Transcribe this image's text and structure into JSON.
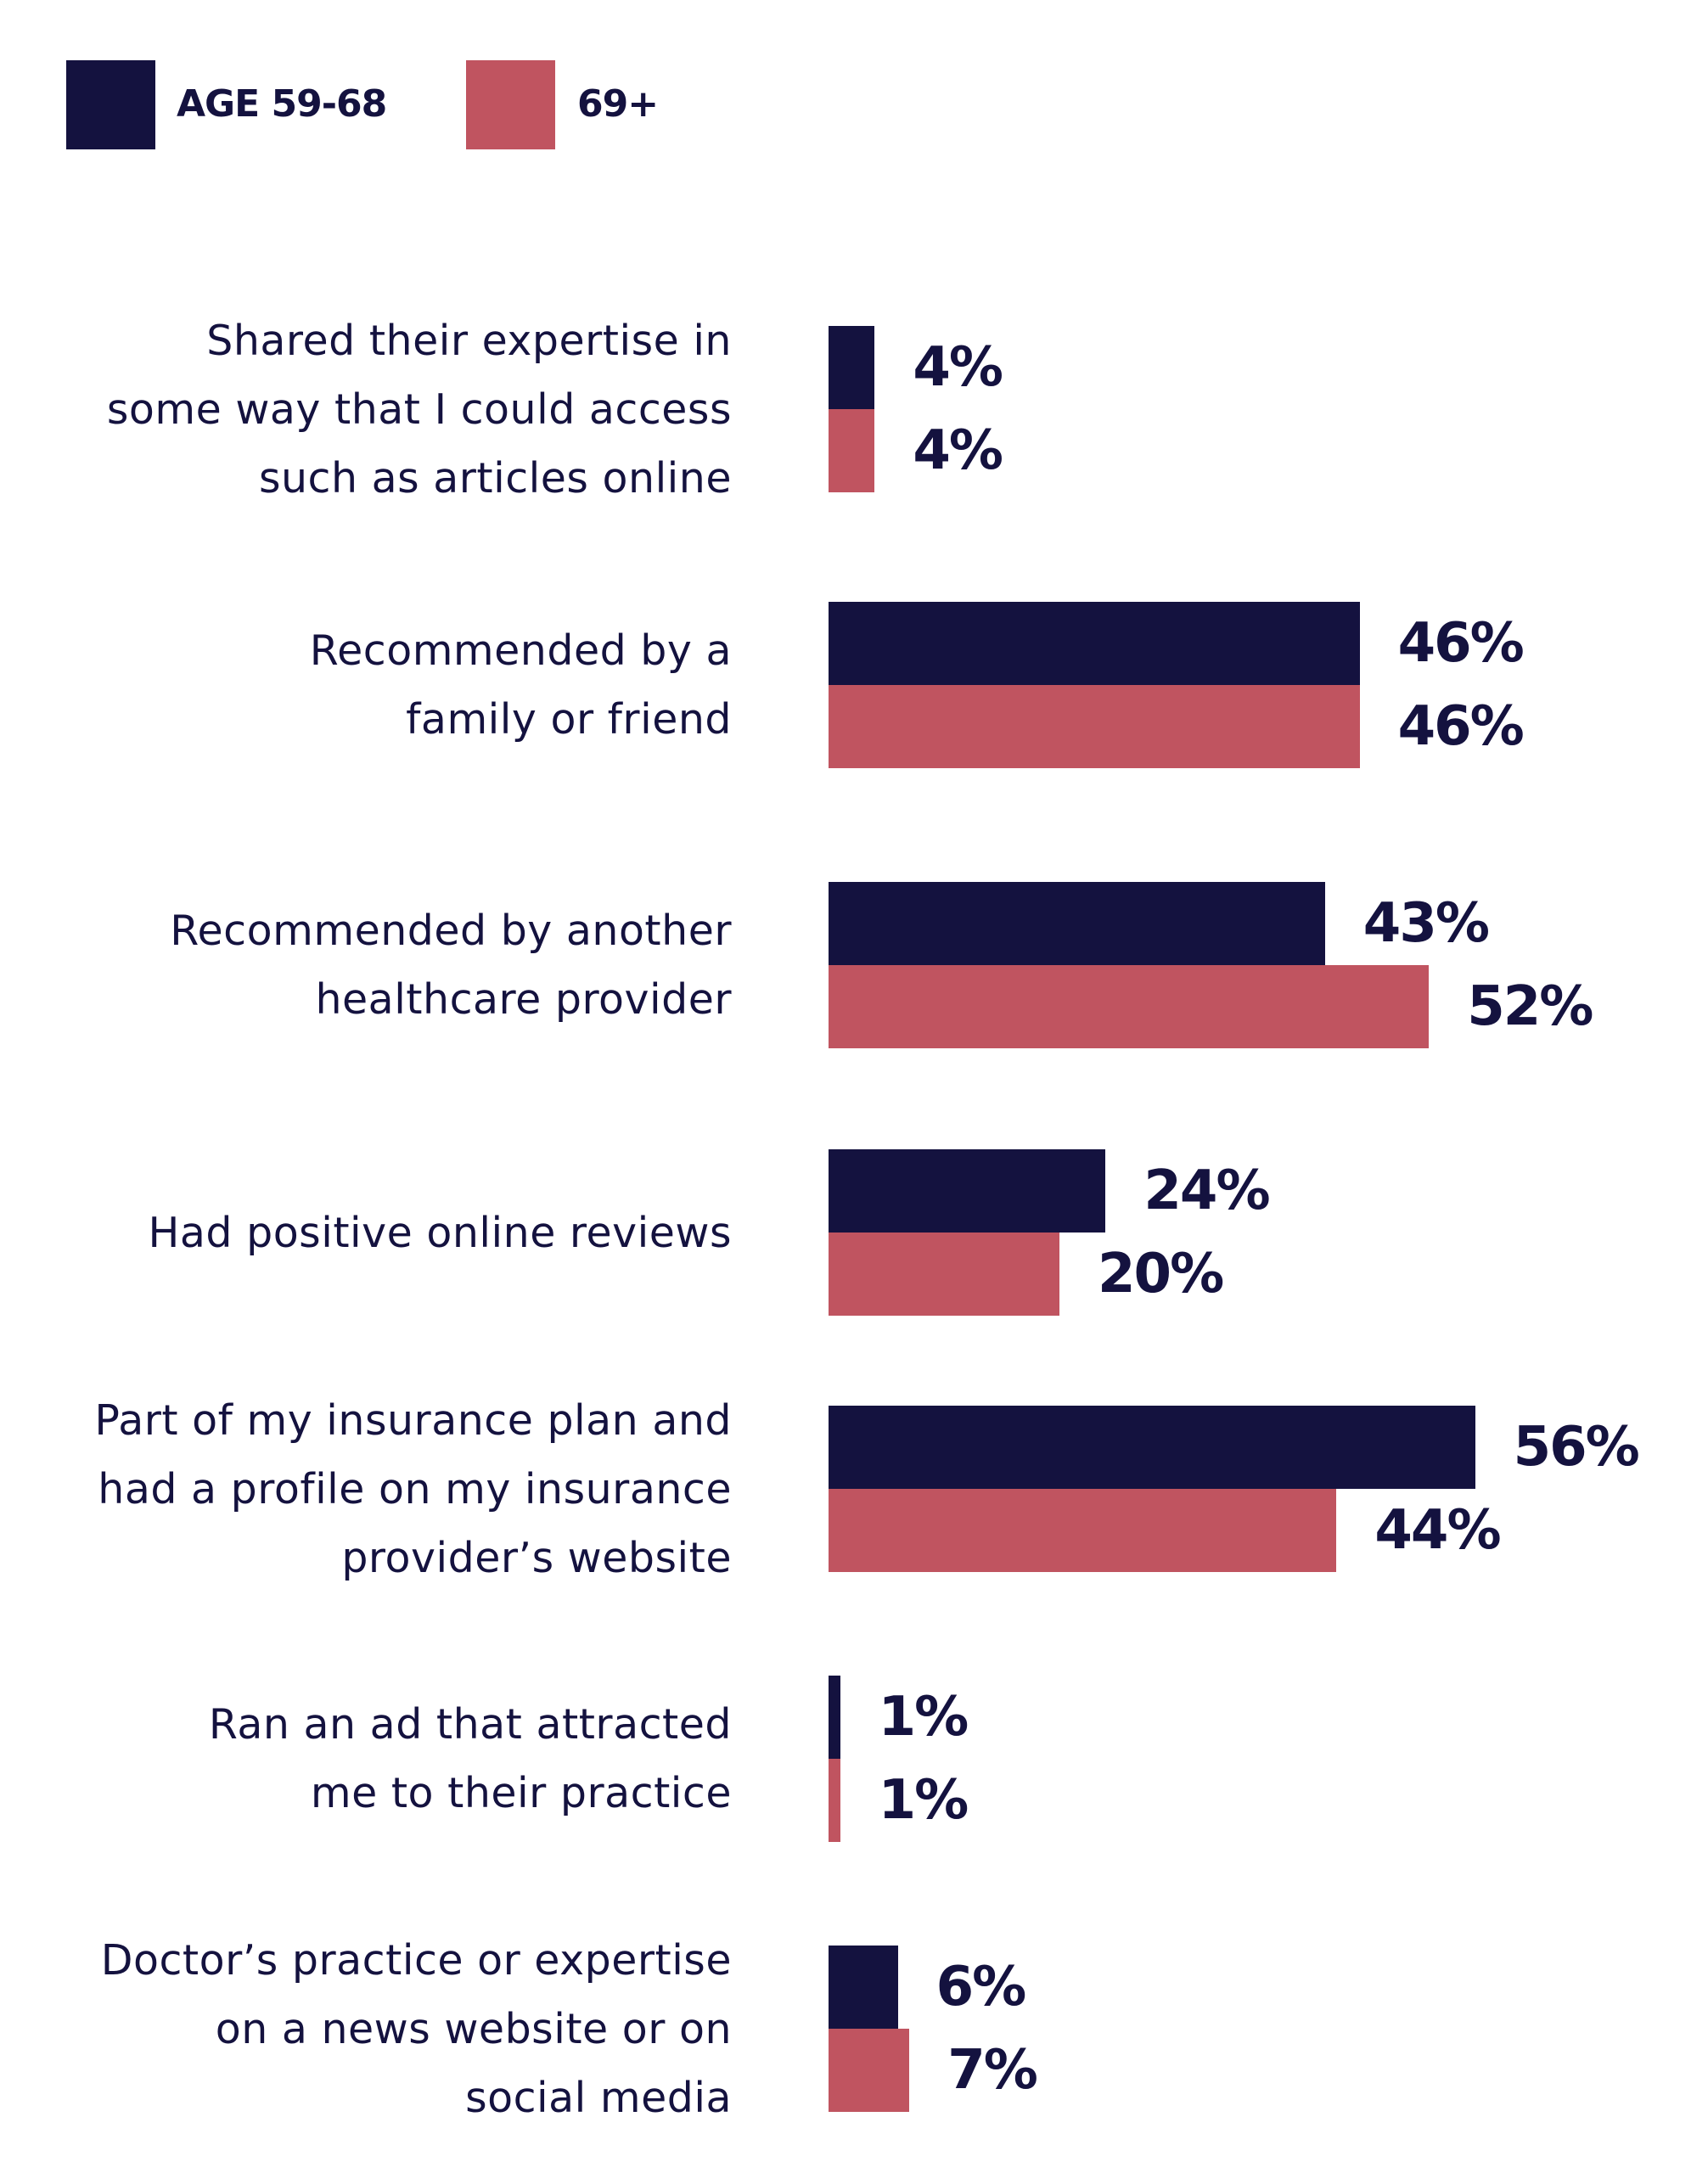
{
  "colors": {
    "series1": "#14123f",
    "series2": "#c05460"
  },
  "chart_data": {
    "type": "bar",
    "orientation": "horizontal",
    "title": "",
    "xlabel": "",
    "ylabel": "",
    "legend_position": "top-left",
    "categories": [
      "Shared their expertise in some way that I could access such as articles online",
      "Recommended by a family or friend",
      "Recommended by another healthcare provider",
      "Had positive online reviews",
      "Part of my insurance plan and had a profile on my insurance provider’s website",
      "Ran an ad that attracted me to their practice",
      "Doctor’s practice or expertise on a news website or on social media"
    ],
    "category_lines": [
      [
        "Shared their expertise in",
        "some way that I could access",
        "such as articles online"
      ],
      [
        "Recommended by a",
        "family or friend"
      ],
      [
        "Recommended by another",
        "healthcare provider"
      ],
      [
        "Had positive online reviews"
      ],
      [
        "Part of my insurance plan and",
        "had a profile on my insurance",
        "provider’s website"
      ],
      [
        "Ran an ad that attracted",
        "me to their practice"
      ],
      [
        "Doctor’s practice or expertise",
        "on a news website or on",
        "social media"
      ]
    ],
    "series": [
      {
        "name": "AGE 59-68",
        "values": [
          4,
          46,
          43,
          24,
          56,
          1,
          6
        ],
        "labels": [
          "4%",
          "46%",
          "43%",
          "24%",
          "56%",
          "1%",
          "6%"
        ]
      },
      {
        "name": "69+",
        "values": [
          4,
          46,
          52,
          20,
          44,
          1,
          7
        ],
        "labels": [
          "4%",
          "46%",
          "52%",
          "20%",
          "44%",
          "1%",
          "7%"
        ]
      }
    ],
    "xlim": [
      0,
      60
    ],
    "grid": false
  }
}
